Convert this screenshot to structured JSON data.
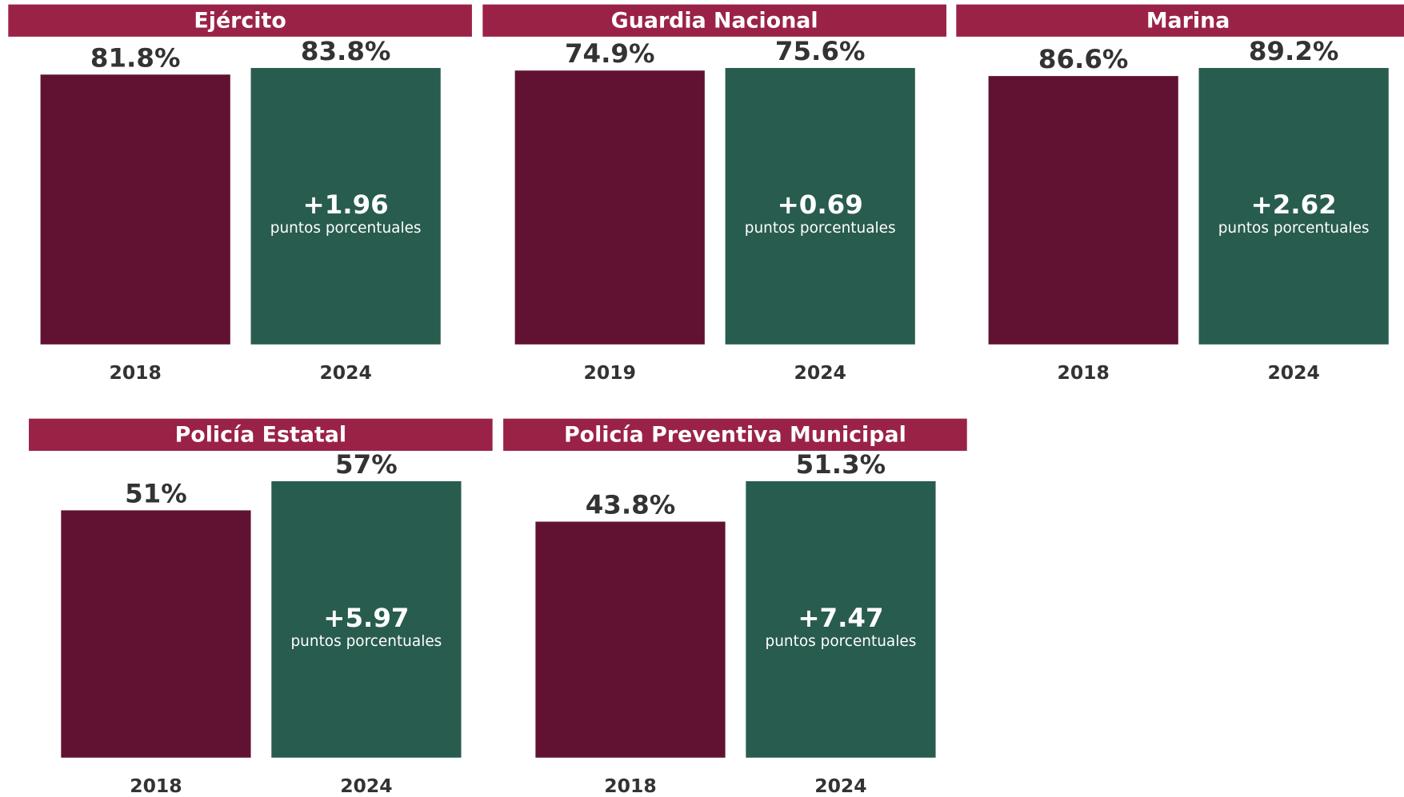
{
  "chart_data": [
    {
      "type": "bar",
      "title": "Ejército",
      "categories": [
        "2018",
        "2024"
      ],
      "values": [
        81.8,
        83.8
      ],
      "value_labels": [
        "81.8%",
        "83.8%"
      ],
      "colors": [
        "#611232",
        "#285c4e"
      ],
      "header_color": "#9b2247",
      "annotation": "+1.96",
      "annotation_note": "puntos porcentuales"
    },
    {
      "type": "bar",
      "title": "Guardia Nacional",
      "categories": [
        "2019",
        "2024"
      ],
      "values": [
        74.9,
        75.6
      ],
      "value_labels": [
        "74.9%",
        "75.6%"
      ],
      "colors": [
        "#611232",
        "#285c4e"
      ],
      "header_color": "#9b2247",
      "annotation": "+0.69",
      "annotation_note": "puntos porcentuales"
    },
    {
      "type": "bar",
      "title": "Marina",
      "categories": [
        "2018",
        "2024"
      ],
      "values": [
        86.6,
        89.2
      ],
      "value_labels": [
        "86.6%",
        "89.2%"
      ],
      "colors": [
        "#611232",
        "#285c4e"
      ],
      "header_color": "#9b2247",
      "annotation": "+2.62",
      "annotation_note": "puntos porcentuales"
    },
    {
      "type": "bar",
      "title": "Policía Estatal",
      "categories": [
        "2018",
        "2024"
      ],
      "values": [
        51,
        57
      ],
      "value_labels": [
        "51%",
        "57%"
      ],
      "colors": [
        "#611232",
        "#285c4e"
      ],
      "header_color": "#9b2247",
      "annotation": "+5.97",
      "annotation_note": "puntos porcentuales"
    },
    {
      "type": "bar",
      "title": "Policía Preventiva Municipal",
      "categories": [
        "2018",
        "2024"
      ],
      "values": [
        43.8,
        51.3
      ],
      "value_labels": [
        "43.8%",
        "51.3%"
      ],
      "colors": [
        "#611232",
        "#285c4e"
      ],
      "header_color": "#9b2247",
      "annotation": "+7.47",
      "annotation_note": "puntos porcentuales"
    }
  ]
}
